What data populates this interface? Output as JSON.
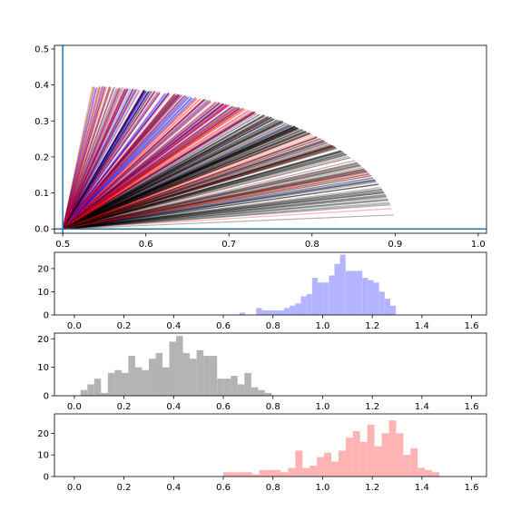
{
  "chart_data": [
    {
      "type": "line",
      "description_role": "fan of rays from origin (0.5, 0) to points on an elliptical arc",
      "xlim": [
        0.49,
        1.01
      ],
      "ylim": [
        -0.012,
        0.51
      ],
      "xticks": [
        "0.5",
        "0.6",
        "0.7",
        "0.8",
        "0.9",
        "1.0"
      ],
      "xtick_values": [
        0.5,
        0.6,
        0.7,
        0.8,
        0.9,
        1.0
      ],
      "yticks": [
        "0.0",
        "0.1",
        "0.2",
        "0.3",
        "0.4",
        "0.5"
      ],
      "ytick_values": [
        0.0,
        0.1,
        0.2,
        0.3,
        0.4,
        0.5
      ],
      "origin": [
        0.5,
        0.0
      ],
      "arc": {
        "center_x": 0.5,
        "radius_x": 0.4,
        "radius_y": 0.4,
        "x_start": 0.535,
        "x_end": 0.9
      },
      "ray_count": 420,
      "colors": {
        "gray_rays": "#000000",
        "blue_rays": "#0000ff",
        "red_rays": "#ff0000",
        "axis_lines": "#1f77b4"
      },
      "axis_lines": {
        "vertical_x": 0.5,
        "horizontal_y": 0.0
      },
      "grid": false
    },
    {
      "type": "bar",
      "role": "histogram",
      "color": "#b3b3ff",
      "xlim": [
        -0.08,
        1.66
      ],
      "ylim": [
        0,
        27
      ],
      "xticks": [
        "0.0",
        "0.2",
        "0.4",
        "0.6",
        "0.8",
        "1.0",
        "1.2",
        "1.4",
        "1.6"
      ],
      "xtick_values": [
        0.0,
        0.2,
        0.4,
        0.6,
        0.8,
        1.0,
        1.2,
        1.4,
        1.6
      ],
      "yticks": [
        "0",
        "10",
        "20"
      ],
      "ytick_values": [
        0,
        10,
        20
      ],
      "bin_start": 0.665,
      "bin_width": 0.0225,
      "values": [
        1,
        0,
        0,
        3,
        2,
        2,
        2,
        2,
        3,
        4,
        5,
        8,
        9,
        16,
        14,
        14,
        17,
        22,
        26,
        19,
        19,
        19,
        16,
        15,
        14,
        10,
        7,
        4
      ]
    },
    {
      "type": "bar",
      "role": "histogram",
      "color": "#b3b3b3",
      "xlim": [
        -0.08,
        1.66
      ],
      "ylim": [
        0,
        22
      ],
      "xticks": [
        "0.0",
        "0.2",
        "0.4",
        "0.6",
        "0.8",
        "1.0",
        "1.2",
        "1.4",
        "1.6"
      ],
      "xtick_values": [
        0.0,
        0.2,
        0.4,
        0.6,
        0.8,
        1.0,
        1.2,
        1.4,
        1.6
      ],
      "yticks": [
        "0",
        "10",
        "20"
      ],
      "ytick_values": [
        0,
        10,
        20
      ],
      "bin_start": 0.025,
      "bin_width": 0.0275,
      "values": [
        2,
        4,
        6,
        1,
        8,
        9,
        8,
        14,
        10,
        9,
        13,
        15,
        10,
        19,
        21,
        15,
        13,
        16,
        14,
        14,
        6,
        6,
        7,
        4,
        8,
        3,
        2,
        1
      ]
    },
    {
      "type": "bar",
      "role": "histogram",
      "color": "#ffb3b3",
      "xlim": [
        -0.08,
        1.66
      ],
      "ylim": [
        0,
        29
      ],
      "xticks": [
        "0.0",
        "0.2",
        "0.4",
        "0.6",
        "0.8",
        "1.0",
        "1.2",
        "1.4",
        "1.6"
      ],
      "xtick_values": [
        0.0,
        0.2,
        0.4,
        0.6,
        0.8,
        1.0,
        1.2,
        1.4,
        1.6
      ],
      "yticks": [
        "0",
        "10",
        "20"
      ],
      "ytick_values": [
        0,
        10,
        20
      ],
      "bin_start": 0.6,
      "bin_width": 0.029,
      "values": [
        2,
        2,
        2,
        2,
        1,
        3,
        3,
        3,
        2,
        4,
        12,
        4,
        5,
        9,
        11,
        7,
        12,
        18,
        21,
        16,
        24,
        14,
        20,
        26,
        20,
        10,
        13,
        4,
        3,
        2
      ]
    }
  ]
}
